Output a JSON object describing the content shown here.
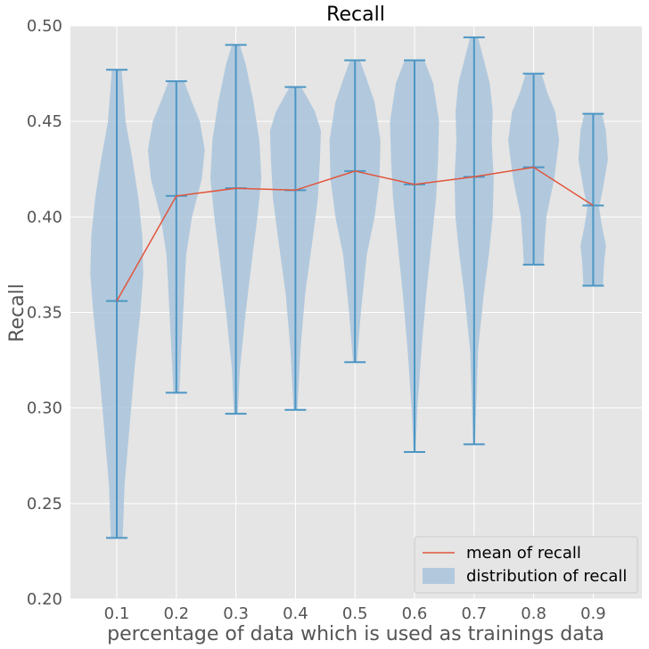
{
  "chart_data": {
    "type": "violin",
    "title": "Recall",
    "xlabel": "percentage of data which is used as trainings data",
    "ylabel": "Recall",
    "ylim": [
      0.2,
      0.5
    ],
    "yticks": [
      "0.20",
      "0.25",
      "0.30",
      "0.35",
      "0.40",
      "0.45",
      "0.50"
    ],
    "categories": [
      "0.1",
      "0.2",
      "0.3",
      "0.4",
      "0.5",
      "0.6",
      "0.7",
      "0.8",
      "0.9"
    ],
    "grid": true,
    "legend": {
      "placement": "lower-right",
      "entries": [
        "mean of recall",
        "distribution of recall"
      ]
    },
    "colors": {
      "background": "#E5E5E5",
      "grid": "#FFFFFF",
      "violin_fill": "#A9C4DC",
      "violin_edge": "#4C96C4",
      "mean_line": "#E2553C"
    },
    "series": [
      {
        "name": "mean of recall",
        "kind": "line",
        "values": [
          0.356,
          0.411,
          0.415,
          0.414,
          0.424,
          0.417,
          0.421,
          0.426,
          0.406
        ]
      },
      {
        "name": "distribution of recall",
        "kind": "violin",
        "violins": [
          {
            "min": 0.232,
            "max": 0.477,
            "mean": 0.356,
            "profile": [
              [
                0.232,
                0.006
              ],
              [
                0.26,
                0.008
              ],
              [
                0.29,
                0.013
              ],
              [
                0.32,
                0.018
              ],
              [
                0.35,
                0.024
              ],
              [
                0.37,
                0.027
              ],
              [
                0.39,
                0.026
              ],
              [
                0.41,
                0.022
              ],
              [
                0.43,
                0.016
              ],
              [
                0.45,
                0.009
              ],
              [
                0.477,
                0.005
              ]
            ]
          },
          {
            "min": 0.308,
            "max": 0.471,
            "mean": 0.411,
            "profile": [
              [
                0.308,
                0.003
              ],
              [
                0.33,
                0.005
              ],
              [
                0.36,
                0.008
              ],
              [
                0.38,
                0.01
              ],
              [
                0.4,
                0.016
              ],
              [
                0.42,
                0.026
              ],
              [
                0.435,
                0.029
              ],
              [
                0.45,
                0.024
              ],
              [
                0.46,
                0.016
              ],
              [
                0.471,
                0.008
              ]
            ]
          },
          {
            "min": 0.297,
            "max": 0.49,
            "mean": 0.415,
            "profile": [
              [
                0.297,
                0.002
              ],
              [
                0.32,
                0.004
              ],
              [
                0.35,
                0.01
              ],
              [
                0.38,
                0.017
              ],
              [
                0.4,
                0.022
              ],
              [
                0.42,
                0.026
              ],
              [
                0.44,
                0.024
              ],
              [
                0.46,
                0.018
              ],
              [
                0.48,
                0.01
              ],
              [
                0.49,
                0.004
              ]
            ]
          },
          {
            "min": 0.299,
            "max": 0.468,
            "mean": 0.414,
            "profile": [
              [
                0.299,
                0.002
              ],
              [
                0.33,
                0.005
              ],
              [
                0.36,
                0.01
              ],
              [
                0.39,
                0.018
              ],
              [
                0.41,
                0.023
              ],
              [
                0.43,
                0.025
              ],
              [
                0.445,
                0.026
              ],
              [
                0.455,
                0.02
              ],
              [
                0.468,
                0.006
              ]
            ]
          },
          {
            "min": 0.324,
            "max": 0.482,
            "mean": 0.424,
            "profile": [
              [
                0.324,
                0.002
              ],
              [
                0.35,
                0.006
              ],
              [
                0.38,
                0.012
              ],
              [
                0.4,
                0.02
              ],
              [
                0.42,
                0.025
              ],
              [
                0.44,
                0.026
              ],
              [
                0.46,
                0.02
              ],
              [
                0.472,
                0.012
              ],
              [
                0.482,
                0.005
              ]
            ]
          },
          {
            "min": 0.277,
            "max": 0.482,
            "mean": 0.417,
            "profile": [
              [
                0.277,
                0.001
              ],
              [
                0.3,
                0.003
              ],
              [
                0.33,
                0.007
              ],
              [
                0.36,
                0.012
              ],
              [
                0.39,
                0.018
              ],
              [
                0.41,
                0.022
              ],
              [
                0.43,
                0.024
              ],
              [
                0.45,
                0.025
              ],
              [
                0.47,
                0.019
              ],
              [
                0.482,
                0.01
              ]
            ]
          },
          {
            "min": 0.281,
            "max": 0.494,
            "mean": 0.421,
            "profile": [
              [
                0.281,
                0.001
              ],
              [
                0.33,
                0.004
              ],
              [
                0.36,
                0.01
              ],
              [
                0.38,
                0.015
              ],
              [
                0.4,
                0.019
              ],
              [
                0.42,
                0.02
              ],
              [
                0.44,
                0.018
              ],
              [
                0.455,
                0.019
              ],
              [
                0.47,
                0.016
              ],
              [
                0.484,
                0.009
              ],
              [
                0.494,
                0.004
              ]
            ]
          },
          {
            "min": 0.375,
            "max": 0.475,
            "mean": 0.426,
            "profile": [
              [
                0.375,
                0.01
              ],
              [
                0.385,
                0.011
              ],
              [
                0.4,
                0.013
              ],
              [
                0.42,
                0.021
              ],
              [
                0.44,
                0.026
              ],
              [
                0.455,
                0.022
              ],
              [
                0.465,
                0.014
              ],
              [
                0.475,
                0.008
              ]
            ]
          },
          {
            "min": 0.364,
            "max": 0.454,
            "mean": 0.406,
            "profile": [
              [
                0.364,
                0.01
              ],
              [
                0.375,
                0.011
              ],
              [
                0.385,
                0.013
              ],
              [
                0.395,
                0.009
              ],
              [
                0.405,
                0.006
              ],
              [
                0.415,
                0.01
              ],
              [
                0.43,
                0.015
              ],
              [
                0.445,
                0.013
              ],
              [
                0.454,
                0.009
              ]
            ]
          }
        ]
      }
    ]
  }
}
